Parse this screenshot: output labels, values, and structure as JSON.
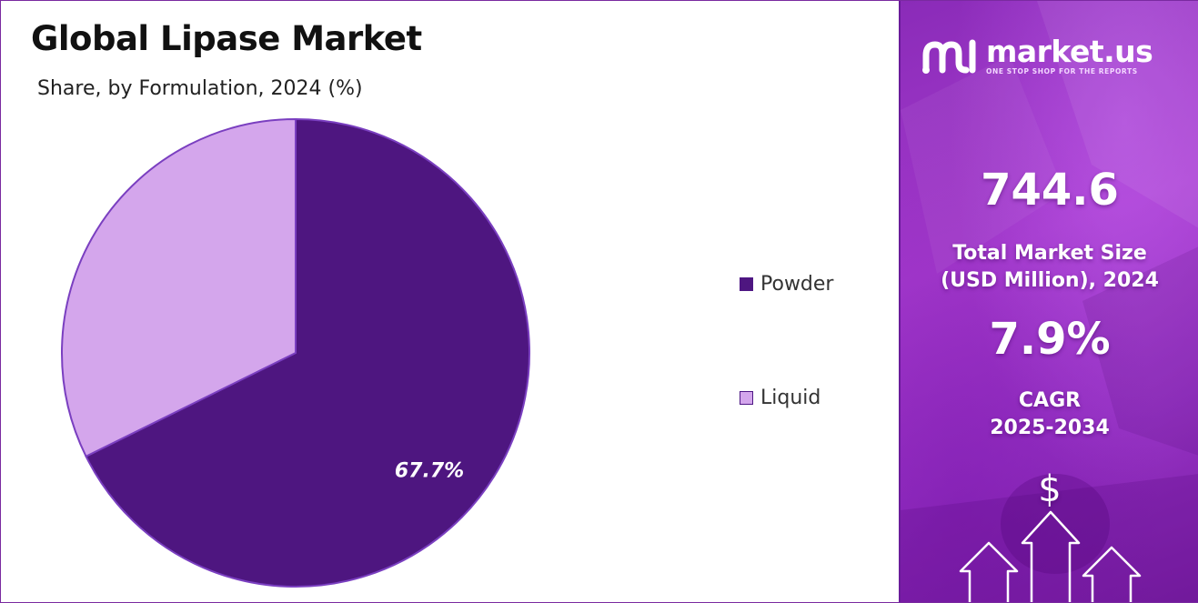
{
  "header": {
    "title": "Global Lipase Market",
    "subtitle": "Share, by Formulation, 2024 (%)"
  },
  "chart_data": {
    "type": "pie",
    "title": "Global Lipase Market",
    "subtitle": "Share, by Formulation, 2024 (%)",
    "categories": [
      "Powder",
      "Liquid"
    ],
    "values": [
      67.7,
      32.3
    ],
    "colors": [
      "#4e1680",
      "#d4a6ec"
    ],
    "data_labels": [
      "67.7%",
      ""
    ],
    "legend_position": "right"
  },
  "legend": {
    "items": [
      {
        "label": "Powder",
        "color": "#4e1680"
      },
      {
        "label": "Liquid",
        "color": "#d4a6ec"
      }
    ]
  },
  "sidebar": {
    "brand_name": "market.us",
    "brand_tagline": "ONE STOP SHOP FOR THE REPORTS",
    "market_size_value": "744.6",
    "market_size_label_line1": "Total Market Size",
    "market_size_label_line2": "(USD Million), 2024",
    "cagr_value": "7.9%",
    "cagr_label_line1": "CAGR",
    "cagr_label_line2": "2025-2034",
    "currency_symbol": "$",
    "icons": [
      "market-us-logo-icon",
      "dollar-sign-icon",
      "up-arrow-icon"
    ],
    "accent_color": "#9b35c6"
  }
}
